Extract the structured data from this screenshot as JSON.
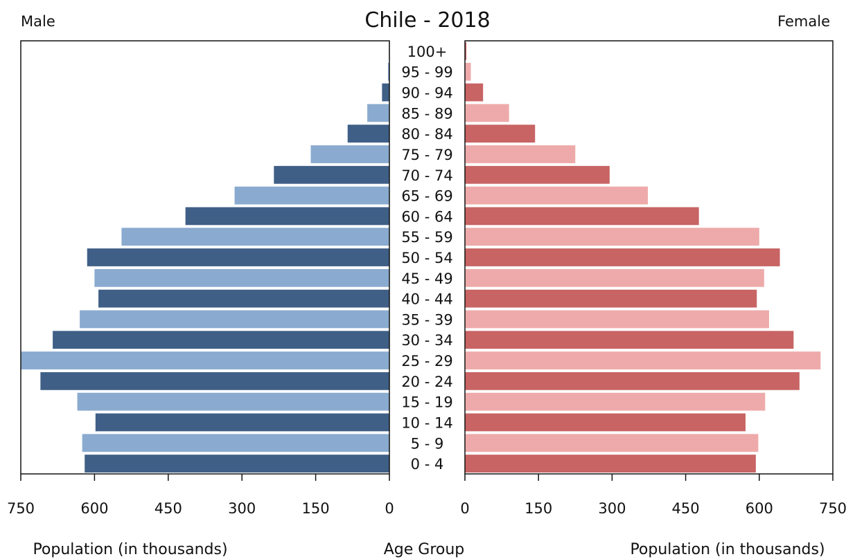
{
  "chart_data": {
    "type": "bar",
    "title": "Chile - 2018",
    "left_label": "Male",
    "right_label": "Female",
    "left_axis_label": "Population (in thousands)",
    "center_axis_label": "Age Group",
    "right_axis_label": "Population (in thousands)",
    "categories": [
      "100+",
      "95 - 99",
      "90 - 94",
      "85 - 89",
      "80 - 84",
      "75 - 79",
      "70 - 74",
      "65 - 69",
      "60 - 64",
      "55 - 59",
      "50 - 54",
      "45 - 49",
      "40 - 44",
      "35 - 39",
      "30 - 34",
      "25 - 29",
      "20 - 24",
      "15 - 19",
      "10 - 14",
      "5 - 9",
      "0 - 4"
    ],
    "series": [
      {
        "name": "Male",
        "values": [
          1,
          3,
          15,
          45,
          85,
          160,
          235,
          315,
          415,
          545,
          615,
          600,
          592,
          630,
          685,
          750,
          710,
          635,
          598,
          625,
          620
        ]
      },
      {
        "name": "Female",
        "values": [
          3,
          12,
          37,
          90,
          143,
          225,
          295,
          373,
          477,
          600,
          642,
          610,
          595,
          620,
          670,
          725,
          682,
          612,
          572,
          598,
          593
        ]
      }
    ],
    "xticks": [
      750,
      600,
      450,
      300,
      150,
      0
    ],
    "xlim": [
      0,
      750
    ],
    "colors": {
      "male_dark": "#3f5f86",
      "male_light": "#8aabcf",
      "female_dark": "#c86464",
      "female_light": "#eeaaaa"
    },
    "grid": false
  }
}
